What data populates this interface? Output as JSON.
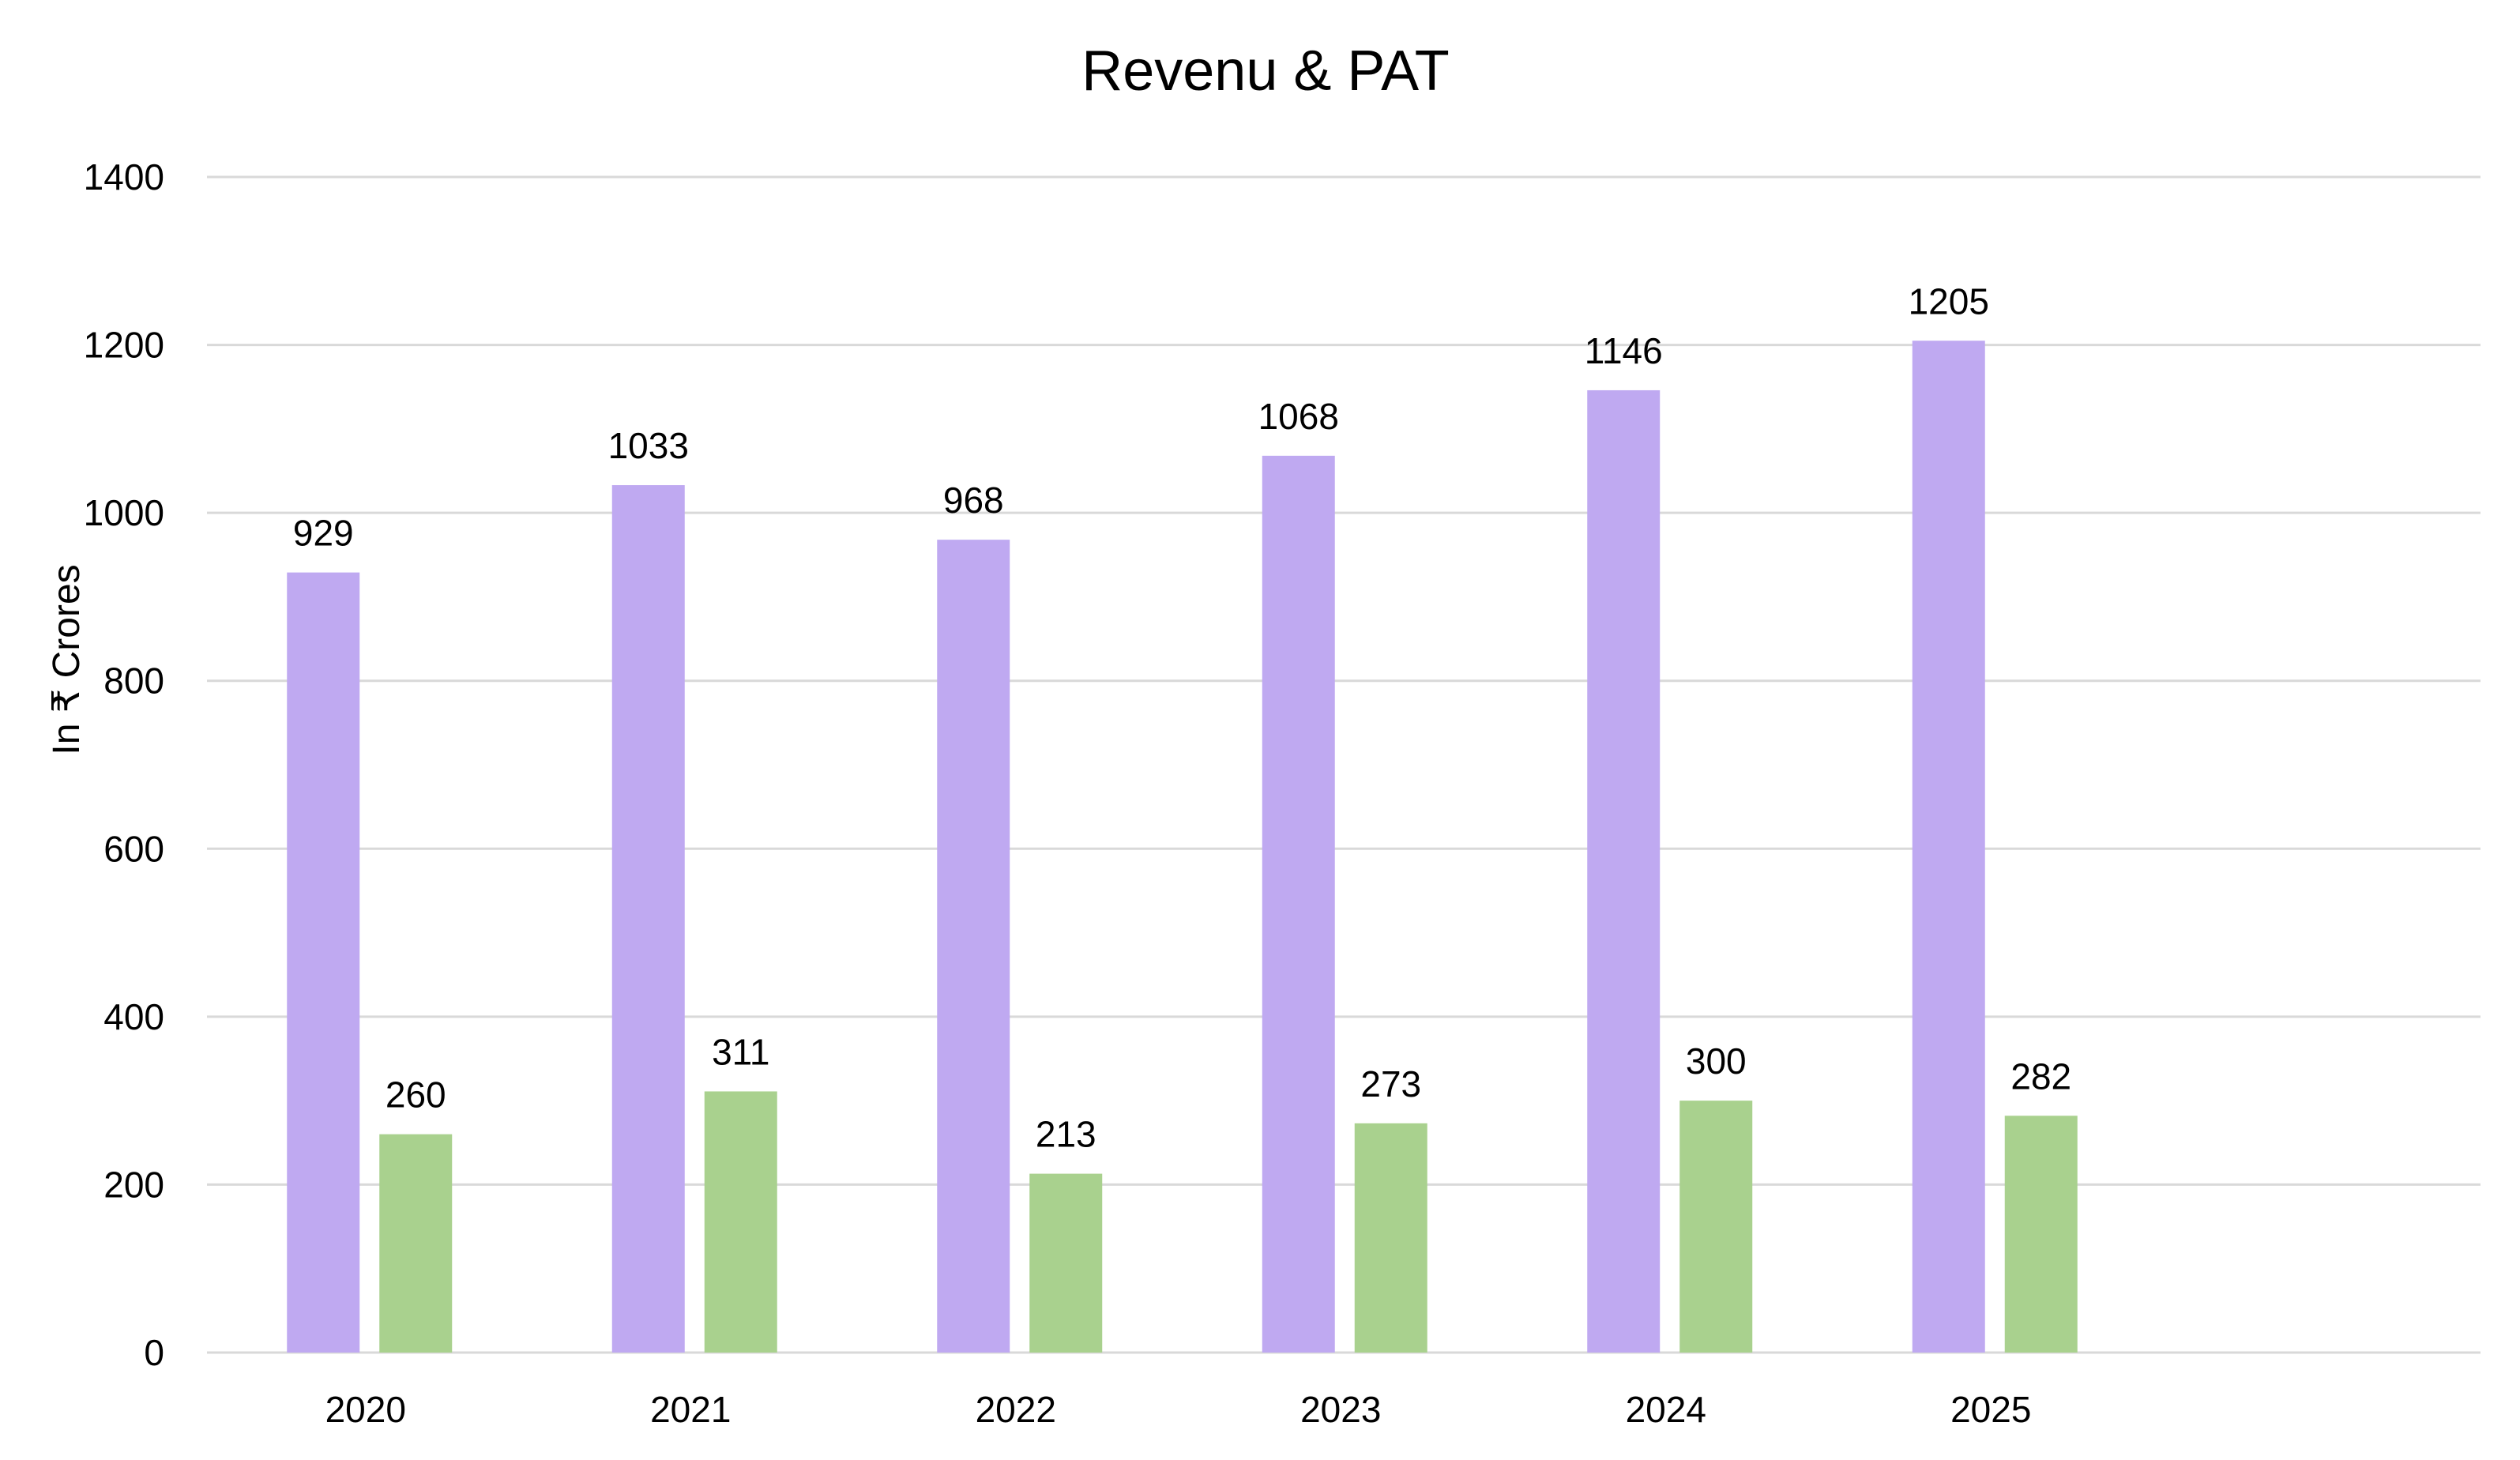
{
  "chart_data": {
    "type": "bar",
    "title": "Revenu & PAT",
    "xlabel": "",
    "ylabel": "In ₹ Crores",
    "categories": [
      "2020",
      "2021",
      "2022",
      "2023",
      "2024",
      "2025"
    ],
    "series": [
      {
        "values": [
          929,
          1033,
          968,
          1068,
          1146,
          1205
        ],
        "color": "#BFA9F1"
      },
      {
        "values": [
          260,
          311,
          213,
          273,
          300,
          282
        ],
        "color": "#A9D18E"
      }
    ],
    "ylim": [
      0,
      1400
    ],
    "yticks": [
      "0",
      "200",
      "400",
      "600",
      "800",
      "1000",
      "1200",
      "1400"
    ],
    "grid": true,
    "gridColor": "#D9D9D9",
    "legend": "none",
    "data_labels": true
  }
}
